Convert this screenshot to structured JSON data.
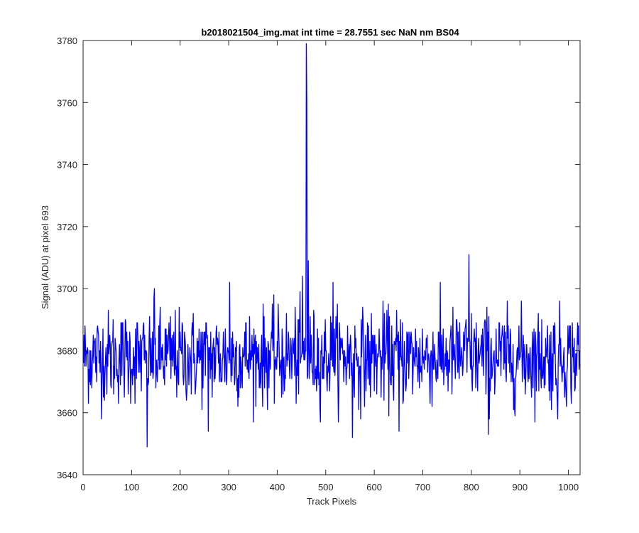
{
  "chart_data": {
    "type": "line",
    "title": "b2018021504_img.mat int time = 28.7551 sec  NaN nm BS04",
    "xlabel": "Track Pixels",
    "ylabel": "Signal (ADU) at pixel 693",
    "xlim": [
      0,
      1024
    ],
    "ylim": [
      3640,
      3780
    ],
    "xticks": [
      0,
      100,
      200,
      300,
      400,
      500,
      600,
      700,
      800,
      900,
      1000
    ],
    "yticks": [
      3640,
      3660,
      3680,
      3700,
      3720,
      3740,
      3760,
      3780
    ],
    "line_color": "#0000ff",
    "grid": false,
    "legend": "none",
    "series": [
      {
        "x": [
          1,
          459,
          460,
          461,
          462
        ],
        "y": [
          3680,
          3680,
          3779,
          3760,
          3680
        ],
        "noise": {
          "count": 1024,
          "baseline": 3678,
          "typical_range": [
            3657,
            3702
          ],
          "min": 3649,
          "extra_peaks": [
            {
              "x": 132,
              "y": 3649
            },
            {
              "x": 147,
              "y": 3700
            },
            {
              "x": 258,
              "y": 3654
            },
            {
              "x": 302,
              "y": 3702
            },
            {
              "x": 452,
              "y": 3704
            },
            {
              "x": 464,
              "y": 3709
            },
            {
              "x": 515,
              "y": 3702
            },
            {
              "x": 555,
              "y": 3652
            },
            {
              "x": 651,
              "y": 3654
            },
            {
              "x": 795,
              "y": 3711
            },
            {
              "x": 835,
              "y": 3653
            },
            {
              "x": 978,
              "y": 3658
            }
          ]
        }
      }
    ]
  }
}
